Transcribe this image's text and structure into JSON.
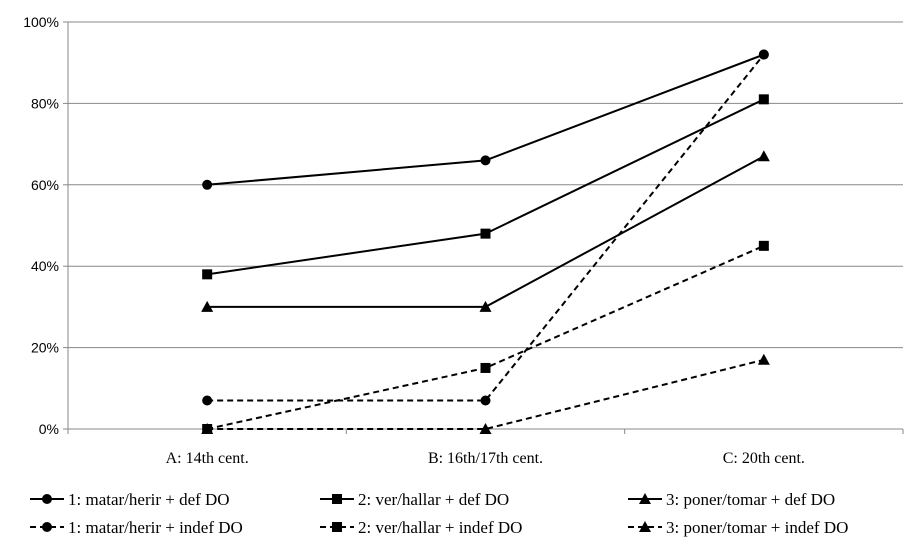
{
  "chart_data": {
    "type": "line",
    "categories": [
      "A: 14th cent.",
      "B: 16th/17th cent.",
      "C: 20th cent."
    ],
    "ylim": [
      0,
      100
    ],
    "yticks": [
      "0%",
      "20%",
      "40%",
      "60%",
      "80%",
      "100%"
    ],
    "grid": "horizontal",
    "legend_position": "bottom",
    "series": [
      {
        "name": "1: matar/herir + def DO",
        "values": [
          60,
          66,
          92
        ],
        "marker": "circle",
        "dash": "solid"
      },
      {
        "name": "2: ver/hallar + def DO",
        "values": [
          38,
          48,
          81
        ],
        "marker": "square",
        "dash": "solid"
      },
      {
        "name": "3: poner/tomar + def DO",
        "values": [
          30,
          30,
          67
        ],
        "marker": "triangle",
        "dash": "solid"
      },
      {
        "name": "1: matar/herir + indef DO",
        "values": [
          7,
          7,
          92
        ],
        "marker": "circle",
        "dash": "dashed"
      },
      {
        "name": "2: ver/hallar + indef DO",
        "values": [
          0,
          15,
          45
        ],
        "marker": "square",
        "dash": "dashed"
      },
      {
        "name": "3: poner/tomar + indef DO",
        "values": [
          0,
          0,
          17
        ],
        "marker": "triangle",
        "dash": "dashed"
      }
    ]
  }
}
